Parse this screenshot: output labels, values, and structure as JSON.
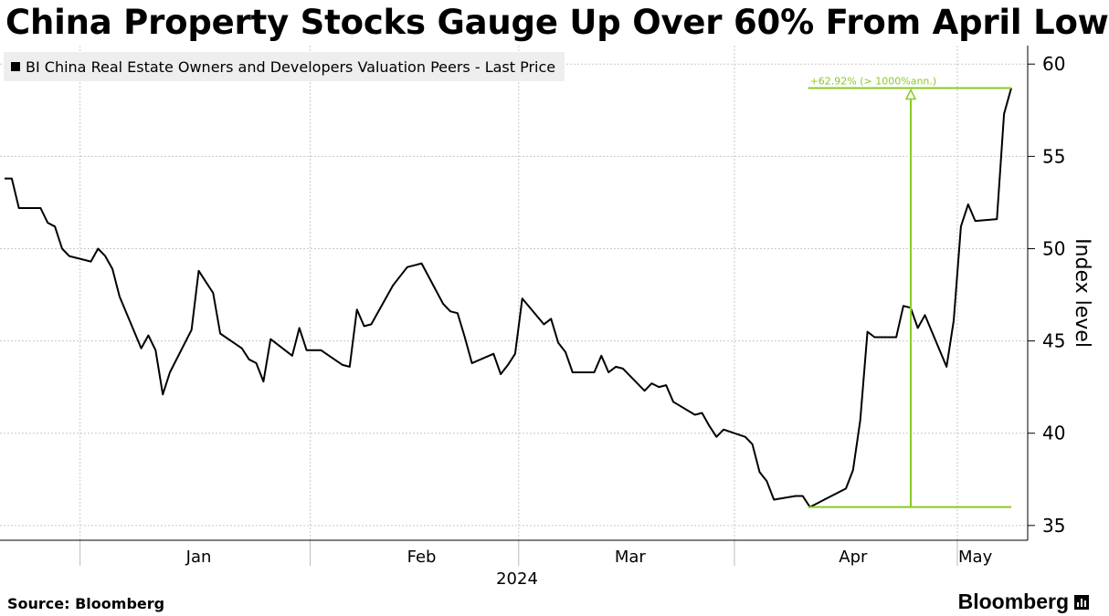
{
  "title": "China Property Stocks Gauge Up Over 60% From April Low",
  "legend": {
    "label": "BI China Real Estate Owners and Developers Valuation Peers - Last Price",
    "marker_color": "#000000"
  },
  "source": "Source: Bloomberg",
  "brand": "Bloomberg",
  "brand_icon": "bar-chart-icon",
  "colors": {
    "line": "#000000",
    "annotation": "#8ac926",
    "grid": "#c8c8c8"
  },
  "chart_data": {
    "type": "line",
    "title": "China Property Stocks Gauge Up Over 60% From April Low",
    "ylabel": "Index level",
    "ylim": [
      34.2,
      61
    ],
    "yticks": [
      35,
      40,
      45,
      50,
      55,
      60
    ],
    "y_axis_side": "right",
    "xlabel": "2024",
    "xlim": [
      "2023-12-20",
      "2024-05-08"
    ],
    "xticks": [
      {
        "date": "2024-01-16",
        "label": "Jan"
      },
      {
        "date": "2024-02-16",
        "label": "Feb"
      },
      {
        "date": "2024-03-16",
        "label": "Mar"
      },
      {
        "date": "2024-04-16",
        "label": "Apr"
      },
      {
        "date": "2024-05-03",
        "label": "May"
      }
    ],
    "grid": true,
    "series": [
      {
        "name": "BI China Real Estate Owners and Developers Valuation Peers - Last Price",
        "color": "#000000",
        "points": [
          [
            "2023-12-20",
            53.8
          ],
          [
            "2023-12-21",
            53.8
          ],
          [
            "2023-12-22",
            52.2
          ],
          [
            "2023-12-25",
            52.2
          ],
          [
            "2023-12-26",
            51.4
          ],
          [
            "2023-12-27",
            51.2
          ],
          [
            "2023-12-28",
            50.0
          ],
          [
            "2023-12-29",
            49.6
          ],
          [
            "2024-01-01",
            49.3
          ],
          [
            "2024-01-02",
            50.0
          ],
          [
            "2024-01-03",
            49.6
          ],
          [
            "2024-01-04",
            48.9
          ],
          [
            "2024-01-05",
            47.4
          ],
          [
            "2024-01-08",
            44.6
          ],
          [
            "2024-01-09",
            45.3
          ],
          [
            "2024-01-10",
            44.5
          ],
          [
            "2024-01-11",
            42.1
          ],
          [
            "2024-01-12",
            43.3
          ],
          [
            "2024-01-15",
            45.6
          ],
          [
            "2024-01-16",
            48.8
          ],
          [
            "2024-01-17",
            48.2
          ],
          [
            "2024-01-18",
            47.6
          ],
          [
            "2024-01-19",
            45.4
          ],
          [
            "2024-01-22",
            44.6
          ],
          [
            "2024-01-23",
            44.0
          ],
          [
            "2024-01-24",
            43.8
          ],
          [
            "2024-01-25",
            42.8
          ],
          [
            "2024-01-26",
            45.1
          ],
          [
            "2024-01-29",
            44.2
          ],
          [
            "2024-01-30",
            45.7
          ],
          [
            "2024-01-31",
            44.5
          ],
          [
            "2024-02-01",
            44.5
          ],
          [
            "2024-02-02",
            44.5
          ],
          [
            "2024-02-05",
            43.7
          ],
          [
            "2024-02-06",
            43.6
          ],
          [
            "2024-02-07",
            46.7
          ],
          [
            "2024-02-08",
            45.8
          ],
          [
            "2024-02-09",
            45.9
          ],
          [
            "2024-02-12",
            48.0
          ],
          [
            "2024-02-13",
            48.5
          ],
          [
            "2024-02-14",
            49.0
          ],
          [
            "2024-02-15",
            49.1
          ],
          [
            "2024-02-16",
            49.2
          ],
          [
            "2024-02-19",
            47.0
          ],
          [
            "2024-02-20",
            46.6
          ],
          [
            "2024-02-21",
            46.5
          ],
          [
            "2024-02-22",
            45.2
          ],
          [
            "2024-02-23",
            43.8
          ],
          [
            "2024-02-26",
            44.3
          ],
          [
            "2024-02-27",
            43.2
          ],
          [
            "2024-02-28",
            43.7
          ],
          [
            "2024-02-29",
            44.3
          ],
          [
            "2024-03-01",
            47.3
          ],
          [
            "2024-03-04",
            45.9
          ],
          [
            "2024-03-05",
            46.2
          ],
          [
            "2024-03-06",
            44.9
          ],
          [
            "2024-03-07",
            44.4
          ],
          [
            "2024-03-08",
            43.3
          ],
          [
            "2024-03-11",
            43.3
          ],
          [
            "2024-03-12",
            44.2
          ],
          [
            "2024-03-13",
            43.3
          ],
          [
            "2024-03-14",
            43.6
          ],
          [
            "2024-03-15",
            43.5
          ],
          [
            "2024-03-18",
            42.3
          ],
          [
            "2024-03-19",
            42.7
          ],
          [
            "2024-03-20",
            42.5
          ],
          [
            "2024-03-21",
            42.6
          ],
          [
            "2024-03-22",
            41.7
          ],
          [
            "2024-03-25",
            41.0
          ],
          [
            "2024-03-26",
            41.1
          ],
          [
            "2024-03-27",
            40.4
          ],
          [
            "2024-03-28",
            39.8
          ],
          [
            "2024-03-29",
            40.2
          ],
          [
            "2024-04-01",
            39.8
          ],
          [
            "2024-04-02",
            39.4
          ],
          [
            "2024-04-03",
            37.9
          ],
          [
            "2024-04-04",
            37.4
          ],
          [
            "2024-04-05",
            36.4
          ],
          [
            "2024-04-08",
            36.6
          ],
          [
            "2024-04-09",
            36.6
          ],
          [
            "2024-04-10",
            36.0
          ],
          [
            "2024-04-11",
            36.2
          ],
          [
            "2024-04-12",
            36.4
          ],
          [
            "2024-04-15",
            37.0
          ],
          [
            "2024-04-16",
            38.0
          ],
          [
            "2024-04-17",
            40.7
          ],
          [
            "2024-04-18",
            45.5
          ],
          [
            "2024-04-19",
            45.2
          ],
          [
            "2024-04-22",
            45.2
          ],
          [
            "2024-04-23",
            46.9
          ],
          [
            "2024-04-24",
            46.8
          ],
          [
            "2024-04-25",
            45.7
          ],
          [
            "2024-04-26",
            46.4
          ],
          [
            "2024-04-29",
            43.6
          ],
          [
            "2024-04-30",
            46.1
          ],
          [
            "2024-05-01",
            51.2
          ],
          [
            "2024-05-02",
            52.4
          ],
          [
            "2024-05-03",
            51.5
          ],
          [
            "2024-05-06",
            51.6
          ],
          [
            "2024-05-07",
            57.3
          ],
          [
            "2024-05-08",
            58.7
          ]
        ]
      }
    ],
    "annotation": {
      "label": "+62.92% (> 1000%ann.)",
      "low": {
        "date": "2024-04-10",
        "value": 36.0
      },
      "high": {
        "date": "2024-05-08",
        "value": 58.7
      },
      "change_pct": 62.92,
      "color": "#8ac926"
    }
  }
}
